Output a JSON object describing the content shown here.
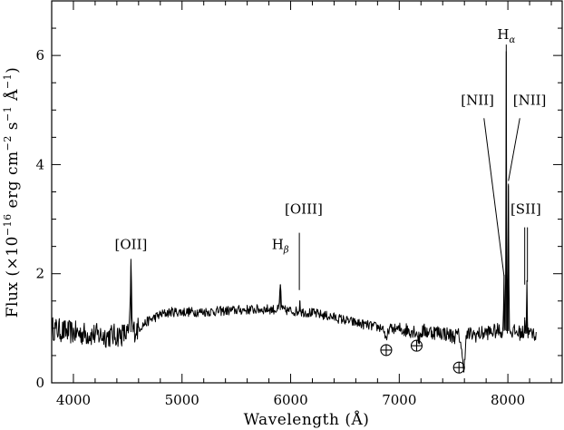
{
  "chart_data": {
    "type": "line",
    "title": "",
    "xlabel": "Wavelength (Å)",
    "ylabel_parts": [
      "Flux (×10",
      "−16",
      " erg cm",
      "−2",
      " s",
      "−1",
      " Å",
      "−1",
      ")"
    ],
    "xlim": [
      3800,
      8500
    ],
    "ylim": [
      0,
      7
    ],
    "xticks": [
      4000,
      5000,
      6000,
      7000,
      8000
    ],
    "yticks": [
      0,
      2,
      4,
      6
    ],
    "grid": false,
    "legend": "none",
    "continuum": [
      [
        3800,
        1.0
      ],
      [
        3900,
        0.95
      ],
      [
        4000,
        0.92
      ],
      [
        4100,
        0.9
      ],
      [
        4200,
        0.88
      ],
      [
        4300,
        0.86
      ],
      [
        4400,
        0.87
      ],
      [
        4500,
        0.9
      ],
      [
        4600,
        1.0
      ],
      [
        4700,
        1.15
      ],
      [
        4800,
        1.25
      ],
      [
        4900,
        1.3
      ],
      [
        5000,
        1.3
      ],
      [
        5200,
        1.3
      ],
      [
        5400,
        1.32
      ],
      [
        5600,
        1.34
      ],
      [
        5800,
        1.35
      ],
      [
        6000,
        1.32
      ],
      [
        6200,
        1.28
      ],
      [
        6400,
        1.2
      ],
      [
        6600,
        1.1
      ],
      [
        6800,
        1.02
      ],
      [
        7000,
        0.98
      ],
      [
        7200,
        0.95
      ],
      [
        7400,
        0.92
      ],
      [
        7500,
        0.85
      ],
      [
        7600,
        0.9
      ],
      [
        7700,
        0.88
      ],
      [
        7800,
        0.92
      ],
      [
        7900,
        0.95
      ],
      [
        8000,
        0.95
      ],
      [
        8100,
        0.92
      ],
      [
        8200,
        0.9
      ],
      [
        8260,
        0.9
      ]
    ],
    "emission_lines": [
      {
        "x": 4530,
        "peak": 2.15,
        "width": 8
      },
      {
        "x": 5905,
        "peak": 1.8,
        "width": 8
      },
      {
        "x": 6085,
        "peak": 1.5,
        "width": 6
      },
      {
        "x": 7965,
        "peak": 1.95,
        "width": 5
      },
      {
        "x": 7985,
        "peak": 6.2,
        "width": 4
      },
      {
        "x": 8005,
        "peak": 3.65,
        "width": 5
      },
      {
        "x": 8155,
        "peak": 1.2,
        "width": 5
      },
      {
        "x": 8175,
        "peak": 1.8,
        "width": 5
      }
    ],
    "absorption_features": [
      {
        "x": 6880,
        "depth": 0.25,
        "width": 15
      },
      {
        "x": 7180,
        "depth": 0.15,
        "width": 15
      },
      {
        "x": 7590,
        "depth": 0.6,
        "width": 20
      }
    ],
    "annotations": [
      {
        "name": "OII",
        "text": "[OII]",
        "sub": "",
        "label_x": 4530,
        "label_y": 2.45,
        "line": []
      },
      {
        "name": "Hbeta",
        "text": "H",
        "sub": "β",
        "label_x": 5905,
        "label_y": 2.45,
        "line": []
      },
      {
        "name": "OIII",
        "text": "[OIII]",
        "sub": "",
        "label_x": 6120,
        "label_y": 3.1,
        "line": [
          [
            6080,
            2.75
          ],
          [
            6080,
            1.7
          ]
        ]
      },
      {
        "name": "NII-left",
        "text": "[NII]",
        "sub": "",
        "label_x": 7720,
        "label_y": 5.1,
        "line": [
          [
            7780,
            4.85
          ],
          [
            7965,
            1.95
          ]
        ]
      },
      {
        "name": "Halpha",
        "text": "H",
        "sub": "α",
        "label_x": 7985,
        "label_y": 6.3,
        "line": []
      },
      {
        "name": "NII-right",
        "text": "[NII]",
        "sub": "",
        "label_x": 8200,
        "label_y": 5.1,
        "line": [
          [
            8110,
            4.85
          ],
          [
            8005,
            3.7
          ]
        ]
      },
      {
        "name": "SII",
        "text": "[SII]",
        "sub": "",
        "label_x": 8165,
        "label_y": 3.1,
        "line": [
          [
            8155,
            2.85
          ],
          [
            8155,
            1.8
          ],
          [
            8180,
            2.85
          ],
          [
            8180,
            1.85
          ]
        ]
      }
    ],
    "earth_symbols": [
      {
        "x": 6880,
        "y": 0.6
      },
      {
        "x": 7160,
        "y": 0.68
      },
      {
        "x": 7550,
        "y": 0.28
      }
    ]
  }
}
